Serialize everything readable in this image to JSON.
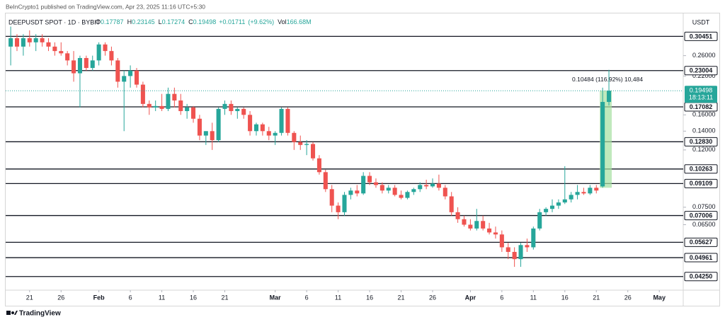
{
  "chart_data": {
    "type": "candlestick",
    "header": "BeInCrypto1 published on TradingView.com, Apr 23, 2025 11:16 UTC+5:30",
    "title": "DEEPUSDT SPOT · 1D · BYBIT",
    "ohlc": [
      {
        "key": "O",
        "value": 0.17787
      },
      {
        "key": "H",
        "value": 0.23145
      },
      {
        "key": "L",
        "value": 0.17274
      },
      {
        "key": "C",
        "value": 0.19498
      },
      {
        "value": 0.01711,
        "label": "+0.01711"
      },
      {
        "value": 9.62,
        "label": "(+9.62%)"
      },
      {
        "key": "Vol",
        "value": 166680000,
        "label": "166.68M"
      }
    ],
    "unit": "USDT",
    "log_scale": true,
    "up_color": "#26a69a",
    "down_color": "#ef5350",
    "level_color": "#131722",
    "ylim": [
      0.038,
      0.3675
    ],
    "yticks": [
      {
        "value": 0.26,
        "label": "0.26000"
      },
      {
        "value": 0.22,
        "label": "0.22000"
      },
      {
        "value": 0.16,
        "label": "0.16000"
      },
      {
        "value": 0.14,
        "label": "0.14000"
      },
      {
        "value": 0.12,
        "label": "0.12000"
      },
      {
        "value": 0.075,
        "label": "0.07500"
      },
      {
        "value": 0.065,
        "label": "0.06500"
      }
    ],
    "levels": [
      0.30451,
      0.23004,
      0.17082,
      {
        "value": 0.1283,
        "label": "0.12830"
      },
      0.10263,
      0.09109,
      0.07006,
      0.05627,
      0.04961,
      {
        "value": 0.0425,
        "label": "0.04250"
      }
    ],
    "last": {
      "value": 0.19498,
      "countdown": "18:13:11"
    },
    "measure": "0.10484 (116.92%) 10,484",
    "xlim": [
      -0.8,
      106.8
    ],
    "xticks": [
      {
        "value": 3,
        "label": "21"
      },
      {
        "value": 8,
        "label": "26"
      },
      {
        "value": 14,
        "label": "Feb"
      },
      {
        "value": 19,
        "label": "6"
      },
      {
        "value": 24,
        "label": "11"
      },
      {
        "value": 29,
        "label": "16"
      },
      {
        "value": 34,
        "label": "21"
      },
      {
        "value": 42,
        "label": "Mar"
      },
      {
        "value": 47,
        "label": "6"
      },
      {
        "value": 52,
        "label": "11"
      },
      {
        "value": 57,
        "label": "16"
      },
      {
        "value": 62,
        "label": "21"
      },
      {
        "value": 67,
        "label": "26"
      },
      {
        "value": 73,
        "label": "Apr"
      },
      {
        "value": 78,
        "label": "6"
      },
      {
        "value": 83,
        "label": "11"
      },
      {
        "value": 88,
        "label": "16"
      },
      {
        "value": 93,
        "label": "21"
      },
      {
        "value": 98,
        "label": "26"
      },
      {
        "value": 103,
        "label": "May"
      }
    ],
    "x": [
      0,
      1,
      2,
      3,
      4,
      5,
      6,
      7,
      8,
      9,
      10,
      11,
      12,
      13,
      14,
      15,
      16,
      17,
      18,
      19,
      20,
      21,
      22,
      23,
      24,
      25,
      26,
      27,
      28,
      29,
      30,
      31,
      32,
      33,
      34,
      35,
      36,
      37,
      38,
      39,
      40,
      41,
      42,
      43,
      44,
      45,
      46,
      47,
      48,
      49,
      50,
      51,
      52,
      53,
      54,
      55,
      56,
      57,
      58,
      59,
      60,
      61,
      62,
      63,
      64,
      65,
      66,
      67,
      68,
      69,
      70,
      71,
      72,
      73,
      74,
      75,
      76,
      77,
      78,
      79,
      80,
      81,
      82,
      83,
      84,
      85,
      86,
      87,
      88,
      89,
      90,
      91,
      92,
      93,
      94,
      95
    ],
    "candles": [
      [
        0.28,
        0.33,
        0.24,
        0.3
      ],
      [
        0.3,
        0.31,
        0.27,
        0.28
      ],
      [
        0.28,
        0.31,
        0.26,
        0.3
      ],
      [
        0.3,
        0.32,
        0.28,
        0.29
      ],
      [
        0.29,
        0.31,
        0.27,
        0.3
      ],
      [
        0.3,
        0.31,
        0.28,
        0.29
      ],
      [
        0.29,
        0.3,
        0.27,
        0.28
      ],
      [
        0.28,
        0.29,
        0.26,
        0.27
      ],
      [
        0.27,
        0.29,
        0.26,
        0.265
      ],
      [
        0.265,
        0.27,
        0.24,
        0.25
      ],
      [
        0.25,
        0.27,
        0.21,
        0.225
      ],
      [
        0.225,
        0.26,
        0.17,
        0.255
      ],
      [
        0.255,
        0.26,
        0.23,
        0.235
      ],
      [
        0.235,
        0.26,
        0.23,
        0.25
      ],
      [
        0.25,
        0.29,
        0.24,
        0.285
      ],
      [
        0.285,
        0.29,
        0.26,
        0.27
      ],
      [
        0.27,
        0.28,
        0.24,
        0.25
      ],
      [
        0.25,
        0.255,
        0.2,
        0.21
      ],
      [
        0.21,
        0.23,
        0.14,
        0.22
      ],
      [
        0.22,
        0.24,
        0.2,
        0.23
      ],
      [
        0.23,
        0.235,
        0.2,
        0.205
      ],
      [
        0.205,
        0.21,
        0.17,
        0.175
      ],
      [
        0.175,
        0.18,
        0.16,
        0.17
      ],
      [
        0.17,
        0.18,
        0.165,
        0.172
      ],
      [
        0.172,
        0.19,
        0.165,
        0.168
      ],
      [
        0.168,
        0.2,
        0.165,
        0.19
      ],
      [
        0.19,
        0.2,
        0.17,
        0.18
      ],
      [
        0.18,
        0.19,
        0.16,
        0.165
      ],
      [
        0.165,
        0.175,
        0.155,
        0.17
      ],
      [
        0.17,
        0.172,
        0.15,
        0.155
      ],
      [
        0.155,
        0.16,
        0.13,
        0.135
      ],
      [
        0.135,
        0.14,
        0.125,
        0.14
      ],
      [
        0.14,
        0.15,
        0.12,
        0.13
      ],
      [
        0.13,
        0.17,
        0.128,
        0.168
      ],
      [
        0.168,
        0.18,
        0.16,
        0.175
      ],
      [
        0.175,
        0.18,
        0.16,
        0.165
      ],
      [
        0.165,
        0.17,
        0.155,
        0.168
      ],
      [
        0.168,
        0.17,
        0.155,
        0.16
      ],
      [
        0.16,
        0.165,
        0.135,
        0.14
      ],
      [
        0.14,
        0.15,
        0.135,
        0.148
      ],
      [
        0.148,
        0.15,
        0.135,
        0.14
      ],
      [
        0.14,
        0.145,
        0.13,
        0.135
      ],
      [
        0.135,
        0.14,
        0.125,
        0.138
      ],
      [
        0.138,
        0.17,
        0.135,
        0.168
      ],
      [
        0.168,
        0.17,
        0.135,
        0.138
      ],
      [
        0.138,
        0.14,
        0.12,
        0.128
      ],
      [
        0.128,
        0.135,
        0.12,
        0.125
      ],
      [
        0.125,
        0.13,
        0.115,
        0.126
      ],
      [
        0.126,
        0.128,
        0.11,
        0.112
      ],
      [
        0.112,
        0.115,
        0.098,
        0.1
      ],
      [
        0.1,
        0.102,
        0.085,
        0.087
      ],
      [
        0.087,
        0.09,
        0.072,
        0.076
      ],
      [
        0.076,
        0.078,
        0.068,
        0.072
      ],
      [
        0.072,
        0.085,
        0.07,
        0.083
      ],
      [
        0.083,
        0.088,
        0.08,
        0.086
      ],
      [
        0.086,
        0.09,
        0.082,
        0.084
      ],
      [
        0.084,
        0.1,
        0.083,
        0.097
      ],
      [
        0.097,
        0.1,
        0.09,
        0.092
      ],
      [
        0.092,
        0.095,
        0.088,
        0.09
      ],
      [
        0.09,
        0.092,
        0.084,
        0.086
      ],
      [
        0.086,
        0.09,
        0.084,
        0.088
      ],
      [
        0.088,
        0.09,
        0.082,
        0.083
      ],
      [
        0.083,
        0.086,
        0.08,
        0.081
      ],
      [
        0.081,
        0.086,
        0.08,
        0.085
      ],
      [
        0.085,
        0.088,
        0.083,
        0.087
      ],
      [
        0.087,
        0.092,
        0.085,
        0.09
      ],
      [
        0.09,
        0.094,
        0.087,
        0.089
      ],
      [
        0.089,
        0.095,
        0.088,
        0.091
      ],
      [
        0.091,
        0.098,
        0.086,
        0.088
      ],
      [
        0.088,
        0.09,
        0.08,
        0.082
      ],
      [
        0.082,
        0.085,
        0.07,
        0.072
      ],
      [
        0.072,
        0.075,
        0.066,
        0.068
      ],
      [
        0.068,
        0.07,
        0.064,
        0.065
      ],
      [
        0.065,
        0.068,
        0.062,
        0.063
      ],
      [
        0.063,
        0.074,
        0.062,
        0.067
      ],
      [
        0.067,
        0.07,
        0.062,
        0.063
      ],
      [
        0.063,
        0.066,
        0.06,
        0.061
      ],
      [
        0.061,
        0.064,
        0.058,
        0.06
      ],
      [
        0.06,
        0.062,
        0.052,
        0.054
      ],
      [
        0.054,
        0.056,
        0.049,
        0.052
      ],
      [
        0.052,
        0.054,
        0.046,
        0.049
      ],
      [
        0.049,
        0.056,
        0.046,
        0.055
      ],
      [
        0.055,
        0.058,
        0.052,
        0.054
      ],
      [
        0.054,
        0.064,
        0.053,
        0.063
      ],
      [
        0.063,
        0.074,
        0.062,
        0.072
      ],
      [
        0.072,
        0.075,
        0.07,
        0.074
      ],
      [
        0.074,
        0.08,
        0.072,
        0.076
      ],
      [
        0.076,
        0.08,
        0.074,
        0.078
      ],
      [
        0.078,
        0.105,
        0.077,
        0.08
      ],
      [
        0.08,
        0.085,
        0.078,
        0.083
      ],
      [
        0.083,
        0.09,
        0.08,
        0.085
      ],
      [
        0.085,
        0.088,
        0.083,
        0.084
      ],
      [
        0.084,
        0.09,
        0.083,
        0.088
      ],
      [
        0.088,
        0.09,
        0.084,
        0.086
      ],
      [
        0.089,
        0.2,
        0.088,
        0.17787
      ],
      [
        0.17787,
        0.23145,
        0.17274,
        0.19498
      ]
    ],
    "footer": "TradingView"
  }
}
